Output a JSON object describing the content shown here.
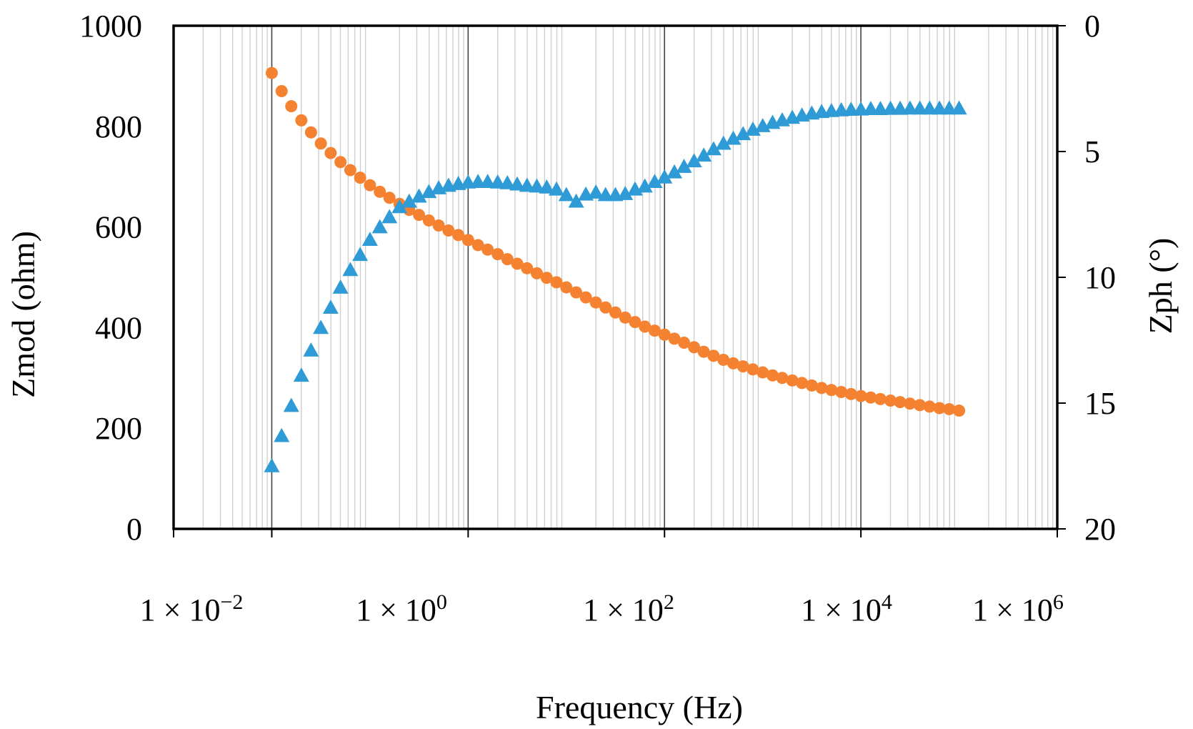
{
  "chart_data": {
    "type": "scatter",
    "xlabel": "Frequency (Hz)",
    "ylabel": "Zmod (ohm)",
    "y2label": "Zph (°)",
    "x_scale": "log",
    "xlim": [
      0.001,
      1000000
    ],
    "ylim": [
      0,
      1000
    ],
    "y2lim_inverted": [
      0,
      20
    ],
    "x_ticks": [
      {
        "value": 0.001,
        "label": ""
      },
      {
        "value": 0.01,
        "label": "1 × 10−2"
      },
      {
        "value": 1,
        "label": "1 × 100"
      },
      {
        "value": 100,
        "label": "1 × 102"
      },
      {
        "value": 10000,
        "label": "1 × 104"
      },
      {
        "value": 1000000,
        "label": "1 × 106"
      }
    ],
    "x_tick_label_parts": [
      {
        "base": "1 × 10",
        "exp": "−2"
      },
      {
        "base": "1 × 10",
        "exp": "0"
      },
      {
        "base": "1 × 10",
        "exp": "2"
      },
      {
        "base": "1 × 10",
        "exp": "4"
      },
      {
        "base": "1 × 10",
        "exp": "6"
      }
    ],
    "y_ticks": [
      "0",
      "200",
      "400",
      "600",
      "800",
      "1000"
    ],
    "y2_ticks": [
      "0",
      "5",
      "10",
      "15",
      "20"
    ],
    "grid": "vertical minor (log decades)",
    "legend": "none",
    "series": [
      {
        "name": "Zmod",
        "axis": "left",
        "marker": "circle",
        "color": "#F58231",
        "x": [
          0.01,
          0.0126,
          0.0158,
          0.02,
          0.0251,
          0.0316,
          0.0398,
          0.0501,
          0.0631,
          0.0794,
          0.1,
          0.126,
          0.158,
          0.2,
          0.251,
          0.316,
          0.398,
          0.501,
          0.631,
          0.794,
          1,
          1.26,
          1.58,
          2,
          2.51,
          3.16,
          3.98,
          5.01,
          6.31,
          7.94,
          10,
          12.6,
          15.8,
          20,
          25.1,
          31.6,
          39.8,
          50.1,
          63.1,
          79.4,
          100,
          126,
          158,
          200,
          251,
          316,
          398,
          501,
          631,
          794,
          1000,
          1260,
          1580,
          2000,
          2510,
          3160,
          3980,
          5010,
          6310,
          7940,
          10000,
          12600,
          15800,
          20000,
          25100,
          31600,
          39800,
          50100,
          63100,
          79400,
          100000
        ],
        "y": [
          906,
          870,
          840,
          812,
          788,
          766,
          747,
          729,
          713,
          698,
          683,
          670,
          658,
          646,
          634,
          624,
          613,
          603,
          593,
          584,
          574,
          564,
          555,
          546,
          536,
          527,
          518,
          508,
          499,
          490,
          480,
          470,
          460,
          450,
          440,
          430,
          420,
          411,
          402,
          394,
          386,
          378,
          370,
          361,
          352,
          344,
          336,
          329,
          323,
          317,
          311,
          305,
          300,
          295,
          290,
          285,
          280,
          276,
          272,
          268,
          264,
          261,
          258,
          255,
          252,
          249,
          246,
          243,
          240,
          238,
          235
        ]
      },
      {
        "name": "Zph",
        "axis": "right",
        "marker": "triangle",
        "color": "#2E9BD6",
        "x": [
          0.01,
          0.0126,
          0.0158,
          0.02,
          0.0251,
          0.0316,
          0.0398,
          0.0501,
          0.0631,
          0.0794,
          0.1,
          0.126,
          0.158,
          0.2,
          0.251,
          0.316,
          0.398,
          0.501,
          0.631,
          0.794,
          1,
          1.26,
          1.58,
          2,
          2.51,
          3.16,
          3.98,
          5.01,
          6.31,
          7.94,
          10,
          12.6,
          15.8,
          20,
          25.1,
          31.6,
          39.8,
          50.1,
          63.1,
          79.4,
          100,
          126,
          158,
          200,
          251,
          316,
          398,
          501,
          631,
          794,
          1000,
          1260,
          1580,
          2000,
          2510,
          3160,
          3980,
          5010,
          6310,
          7940,
          10000,
          12600,
          15800,
          20000,
          25100,
          31600,
          39800,
          50100,
          63100,
          79400,
          100000
        ],
        "y": [
          17.5,
          16.3,
          15.1,
          13.9,
          12.9,
          12.0,
          11.2,
          10.4,
          9.7,
          9.1,
          8.5,
          8.0,
          7.6,
          7.2,
          6.98,
          6.78,
          6.6,
          6.45,
          6.35,
          6.28,
          6.22,
          6.2,
          6.2,
          6.22,
          6.25,
          6.3,
          6.35,
          6.38,
          6.42,
          6.5,
          6.72,
          6.98,
          6.7,
          6.62,
          6.72,
          6.72,
          6.68,
          6.5,
          6.38,
          6.2,
          6.02,
          5.82,
          5.6,
          5.38,
          5.15,
          4.9,
          4.68,
          4.48,
          4.3,
          4.12,
          3.98,
          3.85,
          3.75,
          3.65,
          3.56,
          3.48,
          3.42,
          3.38,
          3.35,
          3.33,
          3.32,
          3.3,
          3.3,
          3.29,
          3.29,
          3.28,
          3.28,
          3.28,
          3.28,
          3.28,
          3.28
        ]
      }
    ]
  }
}
